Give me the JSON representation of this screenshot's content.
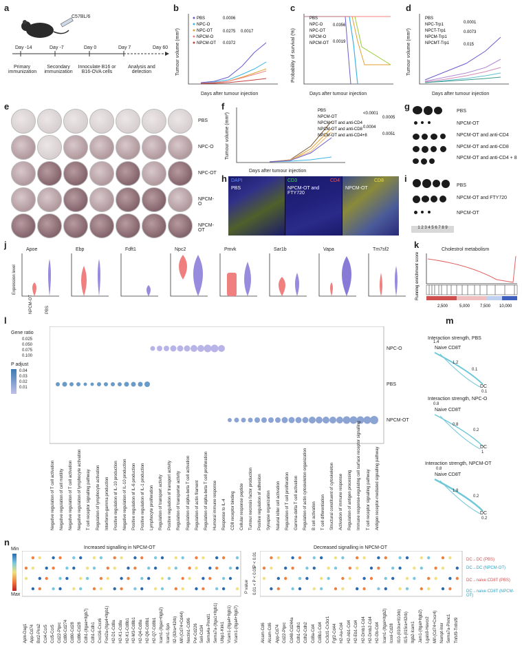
{
  "panels": {
    "a": {
      "letter": "a",
      "mouse": "C57BL/6",
      "days": [
        "Day -14",
        "Day -7",
        "Day 0",
        "Day 7",
        "Day 60"
      ],
      "steps": [
        "Primary immunization",
        "Secondary immunization",
        "Innoculate B16 or B16-OVA cells",
        "Analysis and detection"
      ]
    },
    "b": {
      "letter": "b",
      "ylabel": "Tumour volume (mm³)",
      "xlabel": "Days after tumour injection",
      "legend": [
        "PBS",
        "NPC-O",
        "NPC-OT",
        "NPCM-O",
        "NPCM-OT"
      ],
      "pvalues": [
        "0.0006",
        "0.0275",
        "0.0017",
        "0.0372"
      ]
    },
    "c": {
      "letter": "c",
      "ylabel": "Probability of survival (%)",
      "xlabel": "Days after tumour injection",
      "legend": [
        "PBS",
        "NPC-O",
        "NPC-OT",
        "NPCM-O",
        "NPCM-OT"
      ],
      "pvalues": [
        "0.0356",
        "0.0019"
      ]
    },
    "d": {
      "letter": "d",
      "ylabel": "Tumour volume (mm³)",
      "xlabel": "Days after tumour injection",
      "legend": [
        "PBS",
        "NPC-Trp1",
        "NPCT-Trp1",
        "NPCM-Trp1",
        "NPCMT-Trp1"
      ],
      "pvalues": [
        "0.0001",
        "0.0073",
        "0.015"
      ]
    },
    "e": {
      "letter": "e",
      "rows": [
        "PBS",
        "NPC-O",
        "NPC-OT",
        "NPCM-O",
        "NPCM-OT"
      ]
    },
    "f": {
      "letter": "f",
      "ylabel": "Tumour volume (mm³)",
      "xlabel": "Days after tumour injection",
      "legend": [
        "PBS",
        "NPCM-OT",
        "NPCM-OT and anti-CD4",
        "NPCM-OT and anti-CD8",
        "NPCM-OT and anti-CD4+8"
      ],
      "pvalues": [
        "<0.0001",
        "0.0005",
        "0.0004",
        "0.0051"
      ]
    },
    "g": {
      "letter": "g",
      "rows": [
        "PBS",
        "NPCM-OT",
        "NPCM-OT and anti-CD4",
        "NPCM-OT and anti-CD8",
        "NPCM-OT and anti-CD4 + 8"
      ]
    },
    "h": {
      "letter": "h",
      "channels": [
        "DAPI",
        "CD3",
        "CD4",
        "CD8"
      ],
      "images": [
        "PBS",
        "NPCM-OT and FTY720",
        "NPCM-OT"
      ]
    },
    "i": {
      "letter": "i",
      "rows": [
        "PBS",
        "NPCM-OT and FTY720",
        "NPCM-OT"
      ],
      "ruler": "1 2 3 4 5 6 7 8 9"
    },
    "j": {
      "letter": "j",
      "genes": [
        "Apoe",
        "Ebp",
        "Fdft1",
        "Npc2",
        "Pmvk",
        "Sar1b",
        "Vapa",
        "Tm7sf2"
      ],
      "ylabel": "Expression level",
      "groups": [
        "NPCM-OT",
        "PBS"
      ]
    },
    "k": {
      "letter": "k",
      "title": "Cholestrol metabolism",
      "ylabel": "Running enrichment score",
      "xticks": [
        "2,500",
        "5,000",
        "7,500",
        "10,000"
      ]
    },
    "l": {
      "letter": "l",
      "legend_title_size": "Gene ratio",
      "size_values": [
        "0.025",
        "0.050",
        "0.075",
        "0.100"
      ],
      "legend_title_color": "P adjust",
      "color_values": [
        "0.04",
        "0.03",
        "0.02",
        "0.01"
      ],
      "groups": [
        "NPC-O",
        "PBS",
        "NPCM-OT"
      ],
      "terms": [
        "Negative regulation of T cell activation",
        "Negative regulation of cell motility",
        "Negative regulation of T cell activation",
        "Negative regulation of lymphocyte activation",
        "T cell receptor signalling pathway",
        "Regulation of lymphocyte activation",
        "Interferon-gamma production",
        "Positive regulation of IL-10 production",
        "Negative regulation of IL-10 production",
        "Positive regulation of IL-6 production",
        "Positive regulation of IL-1 production",
        "Lymphocyte proliferation",
        "Regulation of transport activity",
        "Positive regulation of transport activity",
        "Regulation of transporter activity",
        "Regulation of alpha-beta T cell activation",
        "Regulation of actin filament",
        "Regulation of alpha-beta T cell proliferation",
        "Humoral immune response",
        "Response to IL-4",
        "CD8 receptor binding",
        "Cellular response peptide",
        "Tumour necrosis factor production",
        "Positive regulation of adhesion",
        "Synapse organization",
        "Natural killer cell activation",
        "Regulation of T cell proliferation",
        "Gamma-delta T cell activation",
        "Regulation of actin cytoskeleton organization",
        "B cell activation",
        "T cell differentiation",
        "Structural constituent of cytoskeleton",
        "Activation of immune response",
        "Regulation of antigen processing",
        "Immune response-regulating cell surface receptor signalling",
        "T cell receptor signalling pathway",
        "Antigen receptor-mediated signalling pathway"
      ]
    },
    "m": {
      "letter": "m",
      "networks": [
        {
          "title": "Interaction strength, PBS",
          "node_a": "Naive CD8T",
          "node_b": "DC",
          "w_top": "1.4",
          "w_ab": "1.2",
          "w_ba": "0.1",
          "w_bottom": "0.1"
        },
        {
          "title": "Interaction strength, NPC-O",
          "node_a": "Naive CD8T",
          "node_b": "DC",
          "w_top": "0.8",
          "w_ab": "0.8",
          "w_ba": "0.2",
          "w_bottom": "1"
        },
        {
          "title": "Interaction strength, NPCM-OT",
          "node_a": "Naive CD8T",
          "node_b": "DC",
          "w_top": "0.8",
          "w_ab": "1.8",
          "w_ba": "0.2",
          "w_bottom": "0.2"
        }
      ]
    },
    "n": {
      "letter": "n",
      "left_title": "Increased signalling in NPCM-OT",
      "right_title": "Decreased signalling in NPCM-OT",
      "scale_min": "Min",
      "scale_max": "Max",
      "pvalue_label": "P value",
      "pvalue_legend": [
        "0.01 < P < 0.05",
        "P < 0.01"
      ],
      "rows": [
        "DC→DC (PBS)",
        "DC→DC (NPCM-OT)",
        "DC→naive CD8T (PBS)",
        "DC→naive CD8T (NPCM-OT)"
      ],
      "left_pairs": [
        "Apln-Dag1",
        "App-Cd74",
        "Bst2-Pira2",
        "Ccl4-Ccr5",
        "Ccl5-Ccr5",
        "Cd22-Ptprc",
        "Cd80-Cd274",
        "Cd80-Cd28",
        "Cd86-Cd28",
        "Cdh1-(Itgae+Itgb7)",
        "Cdh1-Cdh1",
        "Cxcl16-Cxcr6",
        "Foxl2a-(Itga4+Itgb1)",
        "H2-D1-Cd8a",
        "H2-K1-Cd8a",
        "H2-K1-Cd8b1",
        "H2-M3-Cd8b1",
        "H2-Q4-Cd8a",
        "H2-Q6-Cd8b1",
        "H2-Q7-Cd8b1",
        "Icam1-(Itgax+Itgb2)",
        "Icam1-Spn",
        "Il2-(Il2ra+Il2rb)",
        "Mif-(Cd74+Cd44)",
        "Nectin1-Cd96",
        "Pvr-Cd226",
        "Sell-Cd34",
        "Sema4a-Plxnd1",
        "Sema7a-(Itga1+Itgb1)",
        "Ulbp1-Klrk1",
        "Vcam1-(Itga4+Itgb1)",
        "Vcam1-(Itga4+Itgb7)"
      ],
      "right_pairs": [
        "Alcam-Cd6",
        "Alcam-Cd6",
        "App-Cd74",
        "Cd22-Ptprc",
        "Cd48-Cd244a",
        "Cdh1-Cdh1",
        "Cdh2-Cdh2",
        "Cd8a-Cd4",
        "Cd8b1-Cd4",
        "Cx3cl1-Cx3cr1",
        "Fgf2-Cd44",
        "H2-Aa-Cd4",
        "H2-Ab1-Cd4",
        "H2-Eb1-Cd4",
        "H2-Dmb1-Cd4",
        "H2-Dmb2-Cd4",
        "H2-Ob-Cd4",
        "Icam1-(Itgal+Itgb2)",
        "Icosl-Cd28",
        "Il10-(Il10ra+Il10rb)",
        "Il15-(Il15ra+Il2rb)",
        "Itgb2-Icam1",
        "Jam1-(Itgal+Itgb2)",
        "Lgals9-Havcr2",
        "Mif-(Cd74+Cxcr4)",
        "Nampt-Insr",
        "Sema7a-Plxnc1",
        "Tnfsf9-Tnfrsf9"
      ]
    }
  }
}
